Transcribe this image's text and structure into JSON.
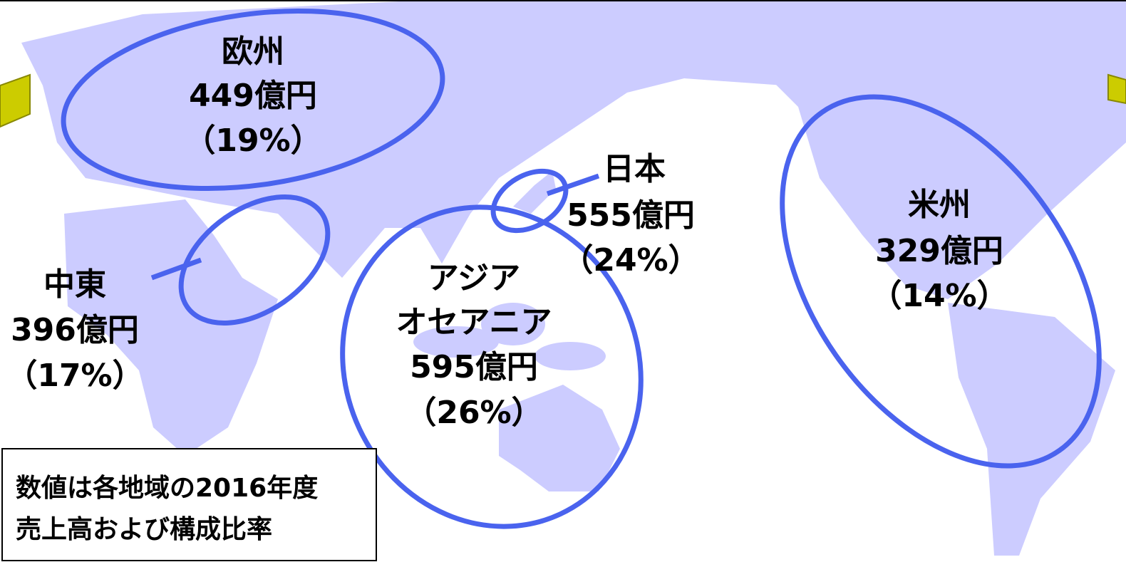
{
  "regions": [
    {
      "name": [
        "欧州"
      ],
      "amount": "449億円",
      "share": "（19%）"
    },
    {
      "name": [
        "中東"
      ],
      "amount": "396億円",
      "share": "（17%）"
    },
    {
      "name": [
        "日本"
      ],
      "amount": "555億円",
      "share": "（24%）"
    },
    {
      "name": [
        "アジア",
        "オセアニア"
      ],
      "amount": "595億円",
      "share": "（26%）"
    },
    {
      "name": [
        "米州"
      ],
      "amount": "329億円",
      "share": "（14%）"
    }
  ],
  "note": {
    "lines": [
      "数値は各地域の2016年度",
      "売上高および構成比率"
    ]
  }
}
